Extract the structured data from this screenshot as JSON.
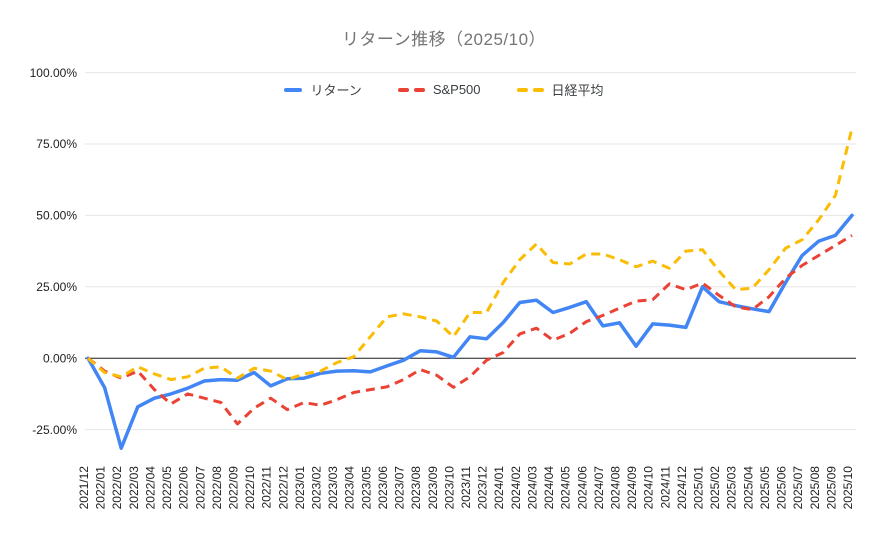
{
  "chart_data": {
    "type": "line",
    "title": "リターン推移（2025/10）",
    "legend_position": "top",
    "grid": true,
    "unit": "percent",
    "x_axis": {
      "label_rotation": -90
    },
    "y_axis": {
      "ticks": [
        {
          "label": "100.00%",
          "value": 100
        },
        {
          "label": "75.00%",
          "value": 75
        },
        {
          "label": "50.00%",
          "value": 50
        },
        {
          "label": "25.00%",
          "value": 25
        },
        {
          "label": "0.00%",
          "value": 0
        },
        {
          "label": "-25.00%",
          "value": -25
        }
      ]
    },
    "categories": [
      "2021/12",
      "2022/01",
      "2022/02",
      "2022/03",
      "2022/04",
      "2022/05",
      "2022/06",
      "2022/07",
      "2022/08",
      "2022/09",
      "2022/10",
      "2022/11",
      "2022/12",
      "2023/01",
      "2023/02",
      "2023/03",
      "2023/04",
      "2023/05",
      "2023/06",
      "2023/07",
      "2023/08",
      "2023/09",
      "2023/10",
      "2023/11",
      "2023/12",
      "2024/01",
      "2024/02",
      "2024/03",
      "2024/04",
      "2024/05",
      "2024/06",
      "2024/07",
      "2024/08",
      "2024/09",
      "2024/10",
      "2024/11",
      "2024/12",
      "2025/01",
      "2025/02",
      "2025/03",
      "2025/04",
      "2025/05",
      "2025/06",
      "2025/07",
      "2025/08",
      "2025/09",
      "2025/10"
    ],
    "series": [
      {
        "key": "return",
        "name": "リターン",
        "color": "#4285F4",
        "style": "solid",
        "values": [
          0,
          -10.3,
          -31.5,
          -17,
          -14,
          -12.5,
          -10.5,
          -8,
          -7.5,
          -7.7,
          -5,
          -9.7,
          -7.2,
          -7,
          -5.3,
          -4.5,
          -4.4,
          -4.8,
          -2.7,
          -0.7,
          2.6,
          2.2,
          0.3,
          7.5,
          6.8,
          12.5,
          19.5,
          20.3,
          16,
          17.8,
          19.8,
          11.3,
          12.4,
          4.2,
          12,
          11.6,
          10.8,
          25,
          19.8,
          18.4,
          17.3,
          16.3,
          26.5,
          36,
          41,
          43,
          50
        ]
      },
      {
        "key": "sp500",
        "name": "S&P500",
        "color": "#EA4335",
        "style": "dashed",
        "values": [
          0,
          -4.5,
          -7,
          -4.5,
          -11,
          -16,
          -12.5,
          -14,
          -15.5,
          -23,
          -17.5,
          -14,
          -18,
          -15.5,
          -16.5,
          -14.5,
          -12,
          -11,
          -10,
          -7.5,
          -4,
          -6,
          -10.2,
          -6.5,
          -0.7,
          2,
          8.5,
          10.5,
          6.3,
          8.7,
          12.8,
          15,
          17.5,
          20,
          20.5,
          26,
          24,
          26.3,
          22,
          18,
          17,
          21.5,
          28,
          32.5,
          36,
          39.5,
          43
        ]
      },
      {
        "key": "nikkei",
        "name": "日経平均",
        "color": "#FBBC04",
        "style": "dashed",
        "values": [
          0,
          -5,
          -6.5,
          -3,
          -5.5,
          -7.5,
          -6.5,
          -3.5,
          -3,
          -7,
          -3.5,
          -4.5,
          -7.5,
          -5.5,
          -4.5,
          -1.5,
          0.5,
          7.5,
          14.5,
          15.5,
          14.5,
          13,
          7.5,
          16,
          16,
          26.5,
          34.5,
          40,
          33.5,
          33,
          36.5,
          36.5,
          34.5,
          32,
          34,
          31.5,
          37.5,
          38,
          30.5,
          24,
          24.5,
          31,
          38.5,
          41.5,
          48.5,
          57,
          80.5
        ]
      }
    ],
    "colors": {
      "gridline": "#e6e6e6",
      "zero_line": "#1b1b1b",
      "axis_text": "#202124",
      "title_text": "#757575",
      "legend_text": "#3c4043"
    }
  }
}
